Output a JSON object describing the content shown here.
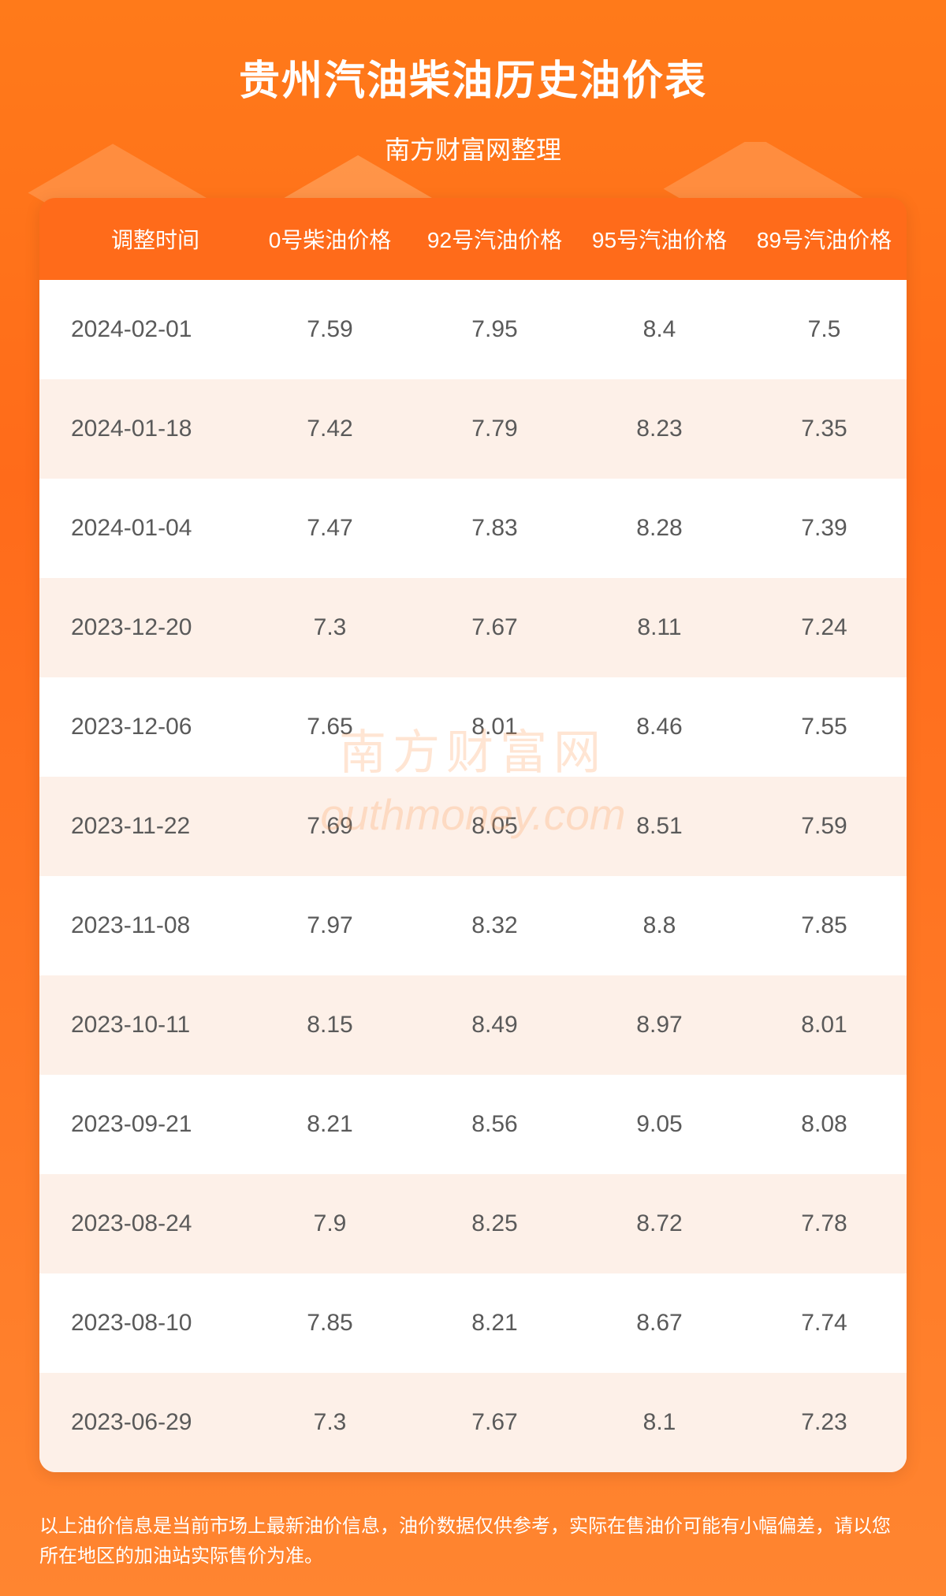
{
  "header": {
    "title": "贵州汽油柴油历史油价表",
    "subtitle": "南方财富网整理"
  },
  "table": {
    "columns": [
      "调整时间",
      "0号柴油价格",
      "92号汽油价格",
      "95号汽油价格",
      "89号汽油价格"
    ],
    "rows": [
      {
        "date": "2024-02-01",
        "diesel0": "7.59",
        "gas92": "7.95",
        "gas95": "8.4",
        "gas89": "7.5"
      },
      {
        "date": "2024-01-18",
        "diesel0": "7.42",
        "gas92": "7.79",
        "gas95": "8.23",
        "gas89": "7.35"
      },
      {
        "date": "2024-01-04",
        "diesel0": "7.47",
        "gas92": "7.83",
        "gas95": "8.28",
        "gas89": "7.39"
      },
      {
        "date": "2023-12-20",
        "diesel0": "7.3",
        "gas92": "7.67",
        "gas95": "8.11",
        "gas89": "7.24"
      },
      {
        "date": "2023-12-06",
        "diesel0": "7.65",
        "gas92": "8.01",
        "gas95": "8.46",
        "gas89": "7.55"
      },
      {
        "date": "2023-11-22",
        "diesel0": "7.69",
        "gas92": "8.05",
        "gas95": "8.51",
        "gas89": "7.59"
      },
      {
        "date": "2023-11-08",
        "diesel0": "7.97",
        "gas92": "8.32",
        "gas95": "8.8",
        "gas89": "7.85"
      },
      {
        "date": "2023-10-11",
        "diesel0": "8.15",
        "gas92": "8.49",
        "gas95": "8.97",
        "gas89": "8.01"
      },
      {
        "date": "2023-09-21",
        "diesel0": "8.21",
        "gas92": "8.56",
        "gas95": "9.05",
        "gas89": "8.08"
      },
      {
        "date": "2023-08-24",
        "diesel0": "7.9",
        "gas92": "8.25",
        "gas95": "8.72",
        "gas89": "7.78"
      },
      {
        "date": "2023-08-10",
        "diesel0": "7.85",
        "gas92": "8.21",
        "gas95": "8.67",
        "gas89": "7.74"
      },
      {
        "date": "2023-06-29",
        "diesel0": "7.3",
        "gas92": "7.67",
        "gas95": "8.1",
        "gas89": "7.23"
      }
    ]
  },
  "watermark": {
    "line1": "南方财富网",
    "line2": "outhmoney.com"
  },
  "disclaimer": "以上油价信息是当前市场上最新油价信息，油价数据仅供参考，实际在售油价可能有小幅偏差，请以您所在地区的加油站实际售价为准。",
  "styling": {
    "background_gradient_top": "#ff7a1a",
    "background_gradient_bottom": "#ff8530",
    "header_bg": "#ff6b1a",
    "row_odd_bg": "#fdf0e8",
    "row_even_bg": "#ffffff",
    "text_color": "#5a5a5a",
    "header_text_color": "#ffffff",
    "title_fontsize": 52,
    "subtitle_fontsize": 32,
    "header_fontsize": 28,
    "cell_fontsize": 30,
    "disclaimer_fontsize": 24,
    "watermark_color": "rgba(255,150,80,0.25)",
    "border_radius": 20,
    "column_widths": [
      "24%",
      "19%",
      "19%",
      "19%",
      "19%"
    ]
  }
}
